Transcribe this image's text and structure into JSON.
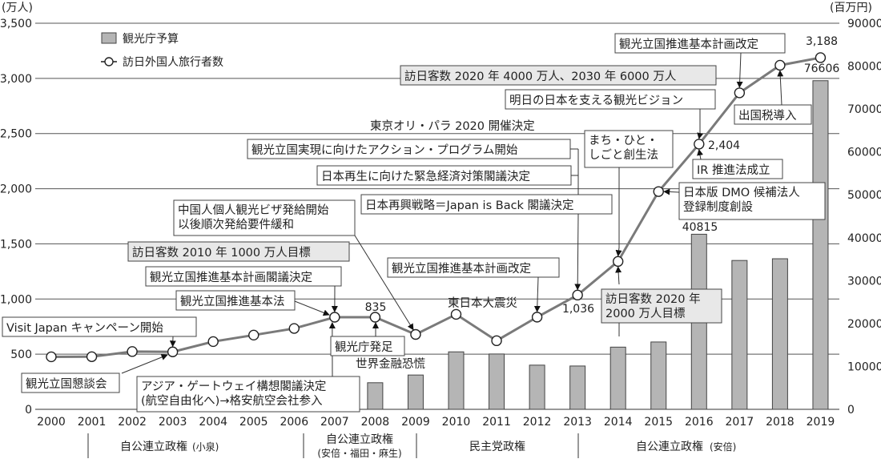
{
  "chart_data": {
    "type": "bar+line",
    "title": "",
    "left_axis": {
      "unit": "(万人)",
      "ticks": [
        "0",
        "500",
        "1,000",
        "1,500",
        "2,000",
        "2,500",
        "3,000",
        "3,500"
      ],
      "range": [
        0,
        3500
      ]
    },
    "right_axis": {
      "unit": "(百万円)",
      "ticks": [
        "0",
        "10000",
        "20000",
        "30000",
        "40000",
        "50000",
        "60000",
        "70000",
        "80000",
        "90000"
      ],
      "range": [
        0,
        90000
      ]
    },
    "categories": [
      "2000",
      "2001",
      "2002",
      "2003",
      "2004",
      "2005",
      "2006",
      "2007",
      "2008",
      "2009",
      "2010",
      "2011",
      "2012",
      "2013",
      "2014",
      "2015",
      "2016",
      "2017",
      "2018",
      "2019"
    ],
    "legend": [
      {
        "label": "観光庁予算",
        "kind": "bar",
        "color": "#b5b5b5"
      },
      {
        "label": "訪日外国人旅行者数",
        "kind": "line",
        "color": "#7a7a7a"
      }
    ],
    "series": [
      {
        "name": "訪日外国人旅行者数",
        "axis": "left",
        "unit": "万人",
        "values": [
          476,
          477,
          524,
          521,
          614,
          673,
          733,
          835,
          835,
          679,
          861,
          622,
          836,
          1036,
          1341,
          1974,
          2404,
          2869,
          3119,
          3188
        ]
      },
      {
        "name": "観光庁予算",
        "axis": "right",
        "unit": "百万円",
        "values": [
          null,
          null,
          null,
          null,
          null,
          null,
          null,
          null,
          6200,
          8000,
          13400,
          12900,
          10300,
          10100,
          14500,
          15700,
          40815,
          34700,
          35100,
          76606
        ]
      }
    ],
    "data_labels": [
      {
        "text": "835",
        "year": "2008"
      },
      {
        "text": "1,036",
        "year": "2013"
      },
      {
        "text": "2,404",
        "year": "2016"
      },
      {
        "text": "3,188",
        "year": "2019"
      },
      {
        "text": "40815",
        "year": "2016",
        "series": "観光庁予算"
      },
      {
        "text": "76606",
        "year": "2019",
        "series": "観光庁予算"
      }
    ],
    "eras": [
      {
        "label": "自公連立政権",
        "sub": "(小泉)"
      },
      {
        "label": "自公連立政権",
        "sub": "(安倍・福田・麻生)"
      },
      {
        "label": "民主党政権",
        "sub": ""
      },
      {
        "label": "自公連立政権",
        "sub": "(安倍)"
      }
    ],
    "annotations": [
      {
        "text": "観光立国懇談会",
        "year": "2003"
      },
      {
        "text": "Visit Japan キャンペーン開始",
        "year": "2003"
      },
      {
        "text": "観光立国推進基本法",
        "year": "2007"
      },
      {
        "text": "観光立国推進基本計画閣議決定",
        "year": "2007"
      },
      {
        "text": "訪日客数 2010 年 1000 万人目標",
        "year": "2007",
        "highlight": true
      },
      {
        "text": "アジア・ゲートウェイ構想閣議決定",
        "text2": "(航空自由化へ)→格安航空会社参入",
        "year": "2007"
      },
      {
        "text": "観光庁発足",
        "year": "2008"
      },
      {
        "text": "世界金融恐慌",
        "year": "2008",
        "boxed": false
      },
      {
        "text": "中国人個人観光ビザ発給開始",
        "text2": "以後順次発給要件緩和",
        "year": "2009"
      },
      {
        "text": "東日本大震災",
        "year": "2011",
        "boxed": false
      },
      {
        "text": "観光立国推進基本計画改定",
        "year": "2012"
      },
      {
        "text": "日本再興戦略＝Japan is Back 閣議決定",
        "year": "2013"
      },
      {
        "text": "日本再生に向けた緊急経済対策閣議決定",
        "year": "2013"
      },
      {
        "text": "観光立国実現に向けたアクション・プログラム開始",
        "year": "2013"
      },
      {
        "text": "東京オリ・パラ 2020 開催決定",
        "year": "2013",
        "boxed": false
      },
      {
        "text": "まち・ひと・",
        "text2": "しごと創生法",
        "year": "2014"
      },
      {
        "text": "訪日客数 2020 年",
        "text2": "2000 万人目標",
        "year": "2014",
        "highlight": true
      },
      {
        "text": "日本版 DMO 候補法人",
        "text2": "登録制度創設",
        "year": "2015"
      },
      {
        "text": "IR 推進法成立",
        "year": "2016"
      },
      {
        "text": "明日の日本を支える観光ビジョン",
        "year": "2016"
      },
      {
        "text": "訪日客数 2020 年 4000 万人、2030 年 6000 万人",
        "year": "2016",
        "highlight": true
      },
      {
        "text": "観光立国推進基本計画改定",
        "year": "2017"
      },
      {
        "text": "出国税導入",
        "year": "2018"
      }
    ]
  }
}
